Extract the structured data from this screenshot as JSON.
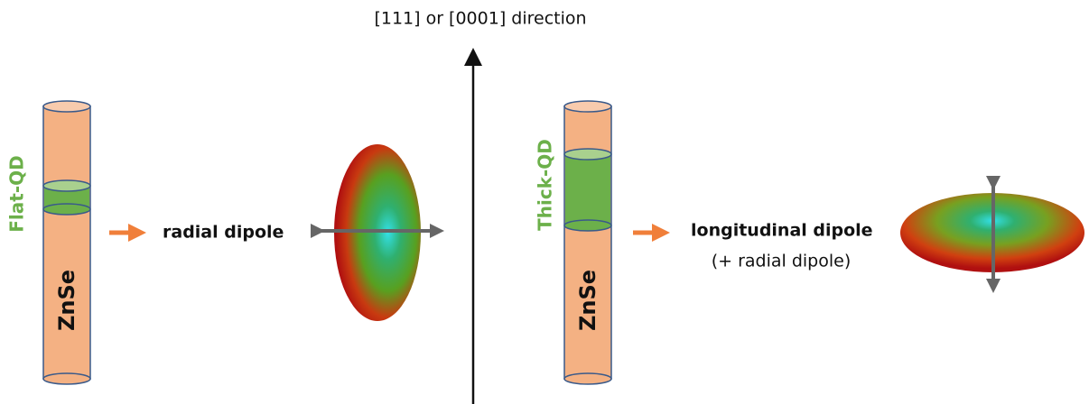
{
  "axis_label": "[111] or [0001] direction",
  "left": {
    "side_label": "Flat-QD",
    "cylinder_label": "ZnSe",
    "dipole_label": "radial dipole"
  },
  "right": {
    "side_label": "Thick-QD",
    "cylinder_label": "ZnSe",
    "dipole_label": "longitudinal dipole",
    "dipole_note": "(+ radial dipole)"
  }
}
